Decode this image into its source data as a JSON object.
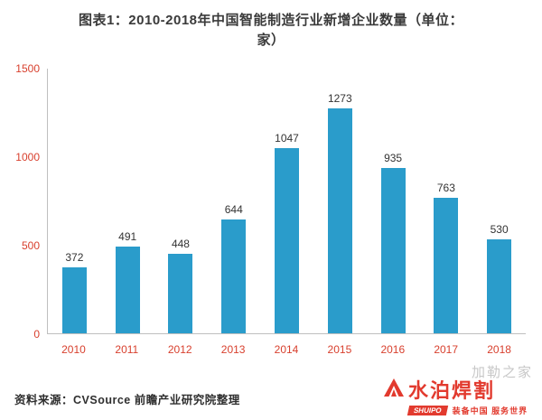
{
  "header": {
    "line1": "图表1：2010-2018年中国智能制造行业新增企业数量（单位：",
    "line2": "家）"
  },
  "chart_data": {
    "type": "bar",
    "title": "图表1：2010-2018年中国智能制造行业新增企业数量（单位：家）",
    "categories": [
      "2010",
      "2011",
      "2012",
      "2013",
      "2014",
      "2015",
      "2016",
      "2017",
      "2018"
    ],
    "values": [
      372,
      491,
      448,
      644,
      1047,
      1273,
      935,
      763,
      530
    ],
    "xlabel": "",
    "ylabel": "",
    "ylim": [
      0,
      1500
    ],
    "yticks": [
      0,
      500,
      1000,
      1500
    ],
    "grid": false,
    "legend": "none",
    "bar_color": "#2a9ccb",
    "axis_label_color": "#d8402e",
    "value_label_color": "#333333"
  },
  "source": "资料来源：CVSource 前瞻产业研究院整理",
  "watermark": {
    "name": "水泊焊割",
    "brand": "SHUIPO",
    "slogan": "装备中国 服务世界",
    "faint": "加勒之家",
    "brand_color": "#e23a2e"
  }
}
